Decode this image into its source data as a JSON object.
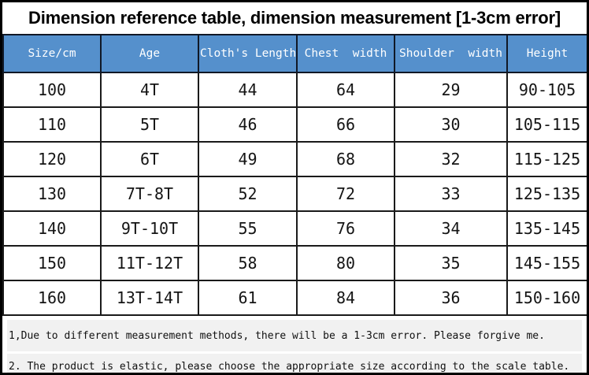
{
  "chart_data": {
    "type": "table",
    "title": "Dimension reference table, dimension measurement [1-3cm error]",
    "columns": [
      "Size/cm",
      "Age",
      "Cloth's Length",
      "Chest  width",
      "Shoulder  width",
      "Height"
    ],
    "rows": [
      [
        "100",
        "4T",
        "44",
        "64",
        "29",
        "90-105"
      ],
      [
        "110",
        "5T",
        "46",
        "66",
        "30",
        "105-115"
      ],
      [
        "120",
        "6T",
        "49",
        "68",
        "32",
        "115-125"
      ],
      [
        "130",
        "7T-8T",
        "52",
        "72",
        "33",
        "125-135"
      ],
      [
        "140",
        "9T-10T",
        "55",
        "76",
        "34",
        "135-145"
      ],
      [
        "150",
        "11T-12T",
        "58",
        "80",
        "35",
        "145-155"
      ],
      [
        "160",
        "13T-14T",
        "61",
        "84",
        "36",
        "150-160"
      ]
    ],
    "units": "cm",
    "layout": {
      "header_position": "top",
      "grid": true
    }
  },
  "notes": [
    "1,Due to different measurement methods, there will be a 1-3cm error. Please forgive me.",
    "2. The product is elastic, please choose the appropriate size according to the scale table."
  ],
  "colors": {
    "header_bg": "#5590cc",
    "header_text": "#ffffff",
    "grid_line": "#1a1a1a",
    "outer_border": "#000000",
    "note_bg": "#f1f1f1",
    "body_text": "#141414"
  }
}
